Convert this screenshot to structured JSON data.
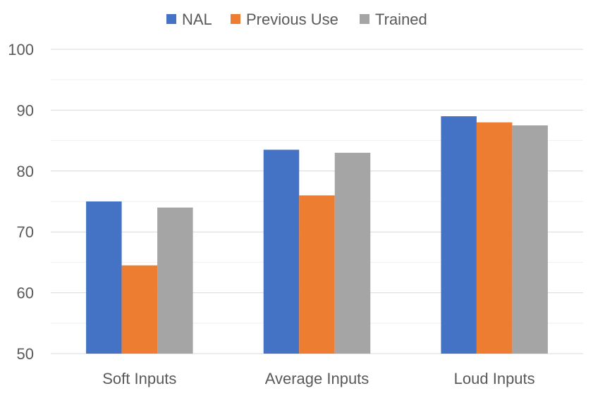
{
  "chart_data": {
    "type": "bar",
    "title": "",
    "xlabel": "",
    "ylabel": "",
    "categories": [
      "Soft Inputs",
      "Average Inputs",
      "Loud Inputs"
    ],
    "series": [
      {
        "name": "NAL",
        "color": "#4472C4",
        "values": [
          75,
          83.5,
          89
        ]
      },
      {
        "name": "Previous Use",
        "color": "#ED7D31",
        "values": [
          64.5,
          76,
          88
        ]
      },
      {
        "name": "Trained",
        "color": "#A5A5A5",
        "values": [
          74,
          83,
          87.5
        ]
      }
    ],
    "ylim": [
      50,
      100
    ],
    "y_ticks": [
      50,
      60,
      70,
      80,
      90,
      100
    ],
    "minor_gridlines": true,
    "legend_position": "top"
  }
}
